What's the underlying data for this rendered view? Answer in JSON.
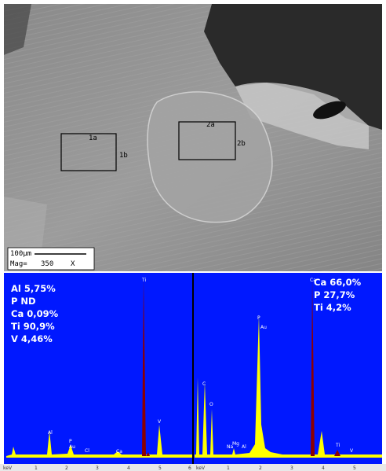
{
  "sem_image": {
    "regions": [
      {
        "label": "1a"
      },
      {
        "label": "1b"
      },
      {
        "label": "2a"
      },
      {
        "label": "2b"
      }
    ],
    "scale_bar": {
      "length": "100µm",
      "mag_label": "Mag=",
      "mag": "350",
      "unit": "X"
    }
  },
  "spectra": [
    {
      "composition": [
        "Al 5,75%",
        "P ND",
        "Ca 0,09%",
        "Ti 90,9%",
        "V 4,46%"
      ],
      "peak_labels": [
        "Ti",
        "V",
        "Al",
        "P",
        "Au",
        "Cl",
        "Ca"
      ],
      "axis": {
        "unit": "keV",
        "ticks": [
          "1",
          "2",
          "3",
          "4",
          "5",
          "6"
        ]
      }
    },
    {
      "composition": [
        "Ca 66,0%",
        "P 27,7%",
        "Ti 4,2%"
      ],
      "peak_labels": [
        "Ca",
        "P",
        "Au",
        "C",
        "O",
        "Na",
        "Mg",
        "Al",
        "Ti",
        "V"
      ],
      "axis": {
        "unit": "keV",
        "ticks": [
          "1",
          "2",
          "3",
          "4",
          "5"
        ]
      }
    }
  ]
}
